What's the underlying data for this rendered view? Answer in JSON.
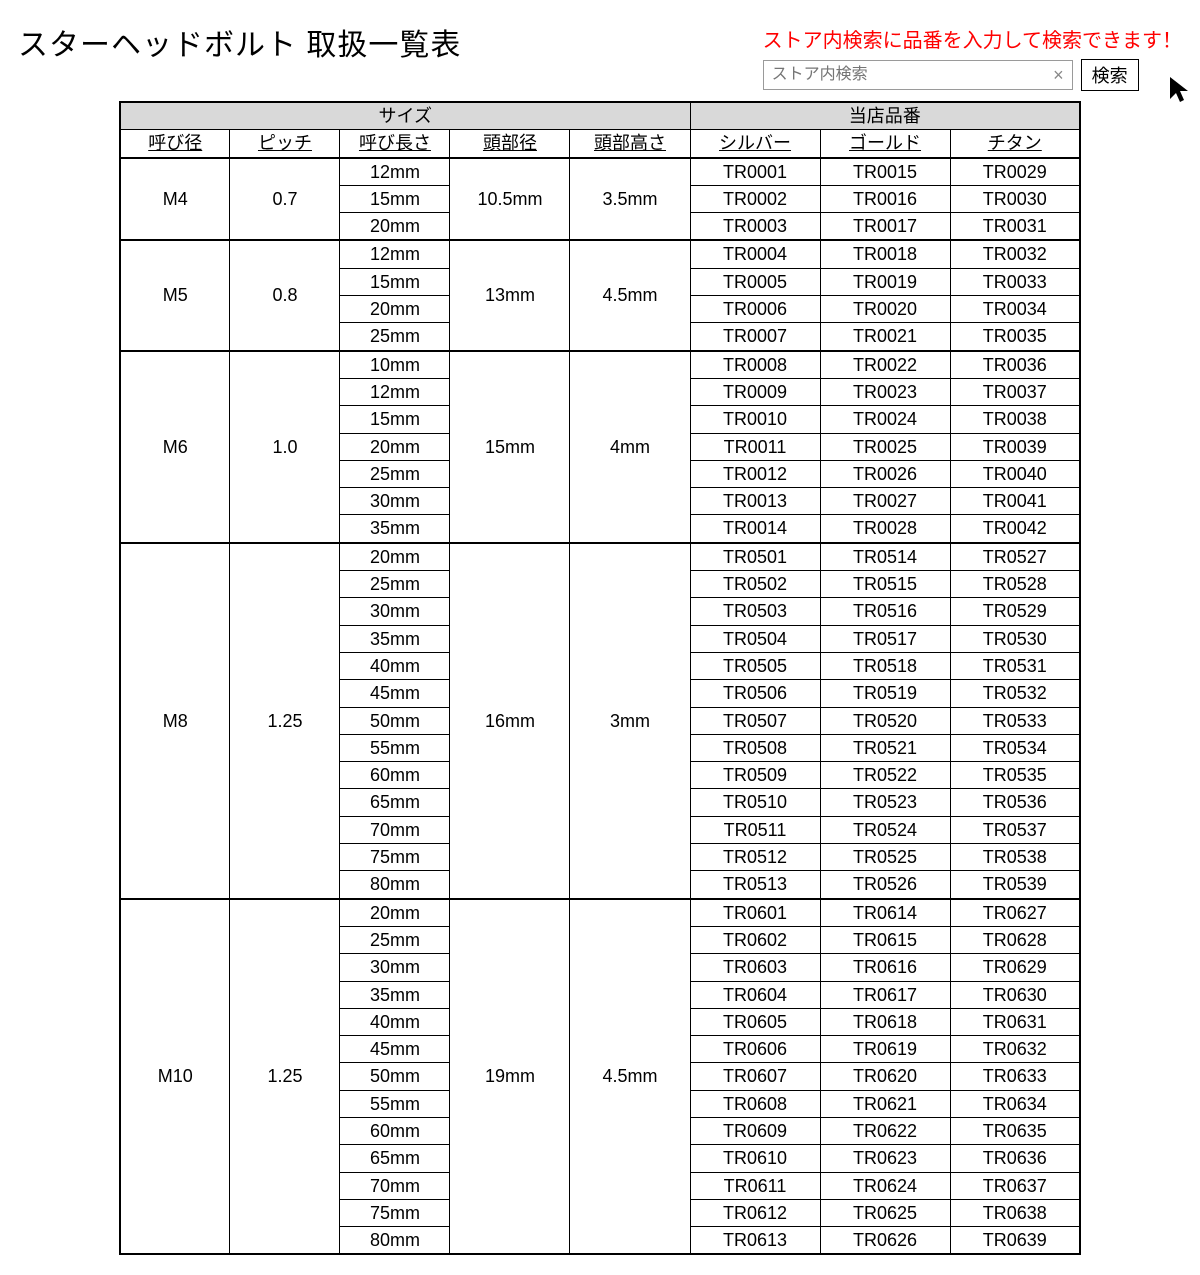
{
  "title": "スターヘッドボルト 取扱一覧表",
  "search": {
    "hint": "ストア内検索に品番を入力して検索できます！",
    "placeholder": "ストア内検索",
    "button": "検索"
  },
  "headers": {
    "group_size": "サイズ",
    "group_part": "当店品番",
    "sub": [
      "呼び径",
      "ピッチ",
      "呼び長さ",
      "頭部径",
      "頭部高さ",
      "シルバー",
      "ゴールド",
      "チタン"
    ]
  },
  "groups": [
    {
      "dia": "M4",
      "pitch": "0.7",
      "head_d": "10.5mm",
      "head_h": "3.5mm",
      "lengths": [
        "12mm",
        "15mm",
        "20mm"
      ],
      "parts": [
        [
          "TR0001",
          "TR0015",
          "TR0029"
        ],
        [
          "TR0002",
          "TR0016",
          "TR0030"
        ],
        [
          "TR0003",
          "TR0017",
          "TR0031"
        ]
      ]
    },
    {
      "dia": "M5",
      "pitch": "0.8",
      "head_d": "13mm",
      "head_h": "4.5mm",
      "lengths": [
        "12mm",
        "15mm",
        "20mm",
        "25mm"
      ],
      "parts": [
        [
          "TR0004",
          "TR0018",
          "TR0032"
        ],
        [
          "TR0005",
          "TR0019",
          "TR0033"
        ],
        [
          "TR0006",
          "TR0020",
          "TR0034"
        ],
        [
          "TR0007",
          "TR0021",
          "TR0035"
        ]
      ]
    },
    {
      "dia": "M6",
      "pitch": "1.0",
      "head_d": "15mm",
      "head_h": "4mm",
      "lengths": [
        "10mm",
        "12mm",
        "15mm",
        "20mm",
        "25mm",
        "30mm",
        "35mm"
      ],
      "parts": [
        [
          "TR0008",
          "TR0022",
          "TR0036"
        ],
        [
          "TR0009",
          "TR0023",
          "TR0037"
        ],
        [
          "TR0010",
          "TR0024",
          "TR0038"
        ],
        [
          "TR0011",
          "TR0025",
          "TR0039"
        ],
        [
          "TR0012",
          "TR0026",
          "TR0040"
        ],
        [
          "TR0013",
          "TR0027",
          "TR0041"
        ],
        [
          "TR0014",
          "TR0028",
          "TR0042"
        ]
      ]
    },
    {
      "dia": "M8",
      "pitch": "1.25",
      "head_d": "16mm",
      "head_h": "3mm",
      "lengths": [
        "20mm",
        "25mm",
        "30mm",
        "35mm",
        "40mm",
        "45mm",
        "50mm",
        "55mm",
        "60mm",
        "65mm",
        "70mm",
        "75mm",
        "80mm"
      ],
      "parts": [
        [
          "TR0501",
          "TR0514",
          "TR0527"
        ],
        [
          "TR0502",
          "TR0515",
          "TR0528"
        ],
        [
          "TR0503",
          "TR0516",
          "TR0529"
        ],
        [
          "TR0504",
          "TR0517",
          "TR0530"
        ],
        [
          "TR0505",
          "TR0518",
          "TR0531"
        ],
        [
          "TR0506",
          "TR0519",
          "TR0532"
        ],
        [
          "TR0507",
          "TR0520",
          "TR0533"
        ],
        [
          "TR0508",
          "TR0521",
          "TR0534"
        ],
        [
          "TR0509",
          "TR0522",
          "TR0535"
        ],
        [
          "TR0510",
          "TR0523",
          "TR0536"
        ],
        [
          "TR0511",
          "TR0524",
          "TR0537"
        ],
        [
          "TR0512",
          "TR0525",
          "TR0538"
        ],
        [
          "TR0513",
          "TR0526",
          "TR0539"
        ]
      ]
    },
    {
      "dia": "M10",
      "pitch": "1.25",
      "head_d": "19mm",
      "head_h": "4.5mm",
      "lengths": [
        "20mm",
        "25mm",
        "30mm",
        "35mm",
        "40mm",
        "45mm",
        "50mm",
        "55mm",
        "60mm",
        "65mm",
        "70mm",
        "75mm",
        "80mm"
      ],
      "parts": [
        [
          "TR0601",
          "TR0614",
          "TR0627"
        ],
        [
          "TR0602",
          "TR0615",
          "TR0628"
        ],
        [
          "TR0603",
          "TR0616",
          "TR0629"
        ],
        [
          "TR0604",
          "TR0617",
          "TR0630"
        ],
        [
          "TR0605",
          "TR0618",
          "TR0631"
        ],
        [
          "TR0606",
          "TR0619",
          "TR0632"
        ],
        [
          "TR0607",
          "TR0620",
          "TR0633"
        ],
        [
          "TR0608",
          "TR0621",
          "TR0634"
        ],
        [
          "TR0609",
          "TR0622",
          "TR0635"
        ],
        [
          "TR0610",
          "TR0623",
          "TR0636"
        ],
        [
          "TR0611",
          "TR0624",
          "TR0637"
        ],
        [
          "TR0612",
          "TR0625",
          "TR0638"
        ],
        [
          "TR0613",
          "TR0626",
          "TR0639"
        ]
      ]
    }
  ],
  "style": {
    "header_bg": "#d9d9d9",
    "border_color": "#000000",
    "hint_color": "#ff0000",
    "font_sizes": {
      "title": 30,
      "hint": 20,
      "cell": 18,
      "header": 20
    }
  }
}
